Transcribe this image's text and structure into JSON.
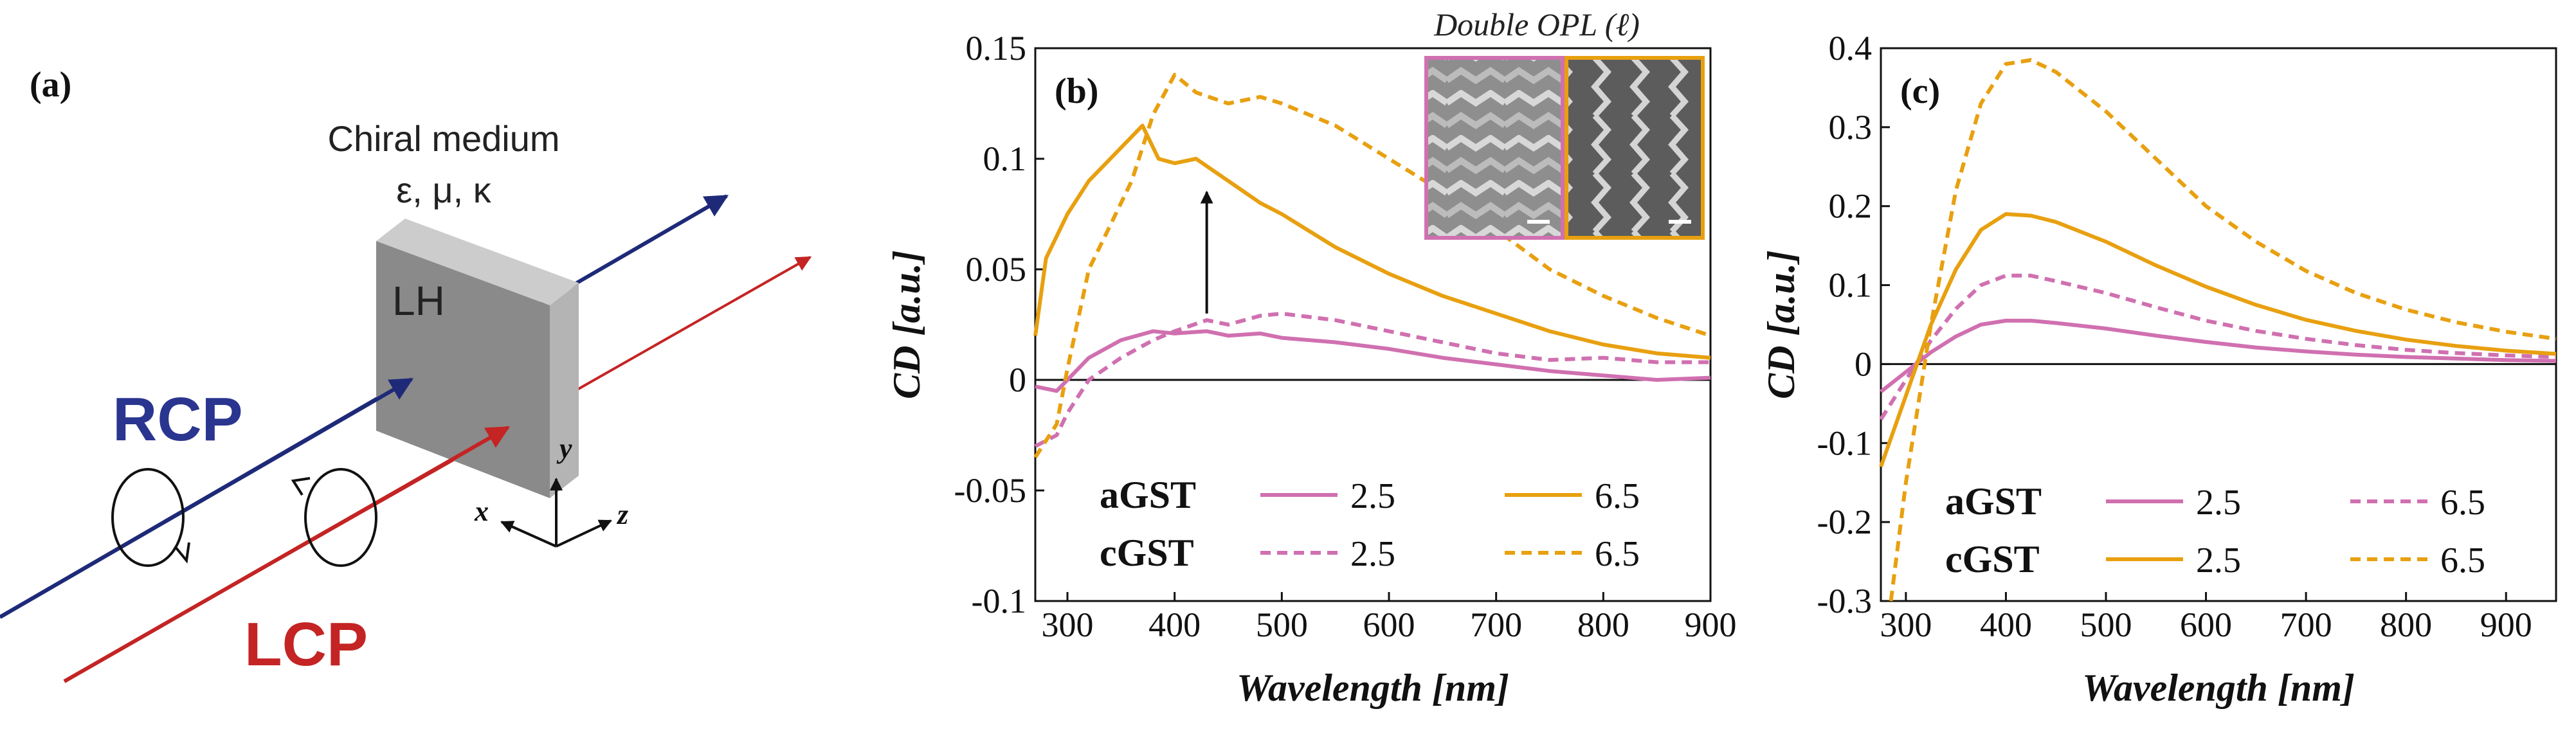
{
  "panels": {
    "a": {
      "label": "(a)",
      "medium_title": "Chiral medium",
      "medium_params": "ε, μ, κ",
      "rcp_label": "RCP",
      "lcp_label": "LCP",
      "medium_symbol": "LH",
      "axis_x": "x",
      "axis_y": "y",
      "axis_z": "z"
    },
    "b": {
      "label": "(b)",
      "inset_caption": "Double OPL (ℓ)"
    },
    "c": {
      "label": "(c)"
    }
  },
  "colors": {
    "pink": "#d070b0",
    "orange": "#e8a010",
    "rcp": "#1e2a78",
    "lcp": "#c42424",
    "slab_front": "#8a8a8a",
    "slab_side": "#b4b4b4",
    "slab_top": "#cccccc"
  },
  "chart_data": [
    {
      "id": "b",
      "type": "line",
      "title": "",
      "xlabel": "Wavelength [nm]",
      "ylabel": "CD [a.u.]",
      "xlim": [
        270,
        900
      ],
      "ylim": [
        -0.1,
        0.15
      ],
      "xticks": [
        300,
        400,
        500,
        600,
        700,
        800,
        900
      ],
      "xtick_labels": [
        "300",
        "400",
        "500",
        "600",
        "700",
        "800",
        "900"
      ],
      "yticks": [
        -0.1,
        -0.05,
        0,
        0.05,
        0.1,
        0.15
      ],
      "ytick_labels": [
        "-0.1",
        "-0.05",
        "0",
        "0.05",
        "0.1",
        "0.15"
      ],
      "zero_line": true,
      "legend": {
        "rows": [
          {
            "group": "aGST",
            "entries": [
              {
                "series": 0,
                "label": "2.5"
              },
              {
                "series": 2,
                "label": "6.5"
              }
            ]
          },
          {
            "group": "cGST",
            "entries": [
              {
                "series": 1,
                "label": "2.5"
              },
              {
                "series": 3,
                "label": "6.5"
              }
            ]
          }
        ]
      },
      "annotations": [
        {
          "type": "arrow",
          "x": 430,
          "from": 0.03,
          "to": 0.085
        }
      ],
      "series": [
        {
          "name": "aGST 2.5",
          "color": "pink",
          "dash": "solid",
          "x": [
            270,
            290,
            300,
            320,
            350,
            380,
            400,
            430,
            450,
            480,
            500,
            550,
            600,
            650,
            700,
            750,
            800,
            850,
            900
          ],
          "y": [
            -0.003,
            -0.005,
            0.0,
            0.01,
            0.018,
            0.022,
            0.021,
            0.022,
            0.02,
            0.021,
            0.019,
            0.017,
            0.014,
            0.01,
            0.007,
            0.004,
            0.002,
            0.0,
            0.001
          ]
        },
        {
          "name": "cGST 2.5",
          "color": "pink",
          "dash": "dashed",
          "x": [
            270,
            290,
            300,
            320,
            350,
            380,
            400,
            430,
            450,
            480,
            500,
            550,
            600,
            650,
            700,
            750,
            800,
            850,
            900
          ],
          "y": [
            -0.03,
            -0.025,
            -0.015,
            0.0,
            0.01,
            0.018,
            0.022,
            0.027,
            0.025,
            0.029,
            0.03,
            0.027,
            0.022,
            0.017,
            0.012,
            0.009,
            0.01,
            0.008,
            0.008
          ]
        },
        {
          "name": "aGST 6.5",
          "color": "orange",
          "dash": "solid",
          "x": [
            270,
            280,
            300,
            320,
            350,
            370,
            385,
            400,
            420,
            450,
            480,
            500,
            550,
            600,
            650,
            700,
            750,
            800,
            850,
            900
          ],
          "y": [
            0.02,
            0.055,
            0.075,
            0.09,
            0.105,
            0.115,
            0.1,
            0.098,
            0.1,
            0.09,
            0.08,
            0.075,
            0.06,
            0.048,
            0.038,
            0.03,
            0.022,
            0.016,
            0.012,
            0.01
          ]
        },
        {
          "name": "cGST 6.5",
          "color": "orange",
          "dash": "dashed",
          "x": [
            270,
            290,
            300,
            320,
            340,
            360,
            380,
            400,
            420,
            450,
            480,
            500,
            550,
            600,
            650,
            700,
            750,
            800,
            850,
            900
          ],
          "y": [
            -0.035,
            -0.02,
            0.005,
            0.05,
            0.07,
            0.09,
            0.12,
            0.138,
            0.13,
            0.125,
            0.128,
            0.125,
            0.115,
            0.1,
            0.085,
            0.068,
            0.05,
            0.038,
            0.028,
            0.02
          ]
        }
      ]
    },
    {
      "id": "c",
      "type": "line",
      "title": "",
      "xlabel": "Wavelength [nm]",
      "ylabel": "CD [a.u.]",
      "xlim": [
        275,
        950
      ],
      "ylim": [
        -0.3,
        0.4
      ],
      "xticks": [
        300,
        400,
        500,
        600,
        700,
        800,
        900
      ],
      "xtick_labels": [
        "300",
        "400",
        "500",
        "600",
        "700",
        "800",
        "900"
      ],
      "yticks": [
        -0.3,
        -0.2,
        -0.1,
        0,
        0.1,
        0.2,
        0.3,
        0.4
      ],
      "ytick_labels": [
        "-0.3",
        "-0.2",
        "-0.1",
        "0",
        "0.1",
        "0.2",
        "0.3",
        "0.4"
      ],
      "zero_line": true,
      "legend": {
        "rows": [
          {
            "group": "aGST",
            "entries": [
              {
                "series": 0,
                "label": "2.5"
              },
              {
                "series": 1,
                "label": "6.5"
              }
            ]
          },
          {
            "group": "cGST",
            "entries": [
              {
                "series": 2,
                "label": "2.5"
              },
              {
                "series": 3,
                "label": "6.5"
              }
            ]
          }
        ]
      },
      "annotations": [],
      "series": [
        {
          "name": "aGST 2.5",
          "color": "pink",
          "dash": "solid",
          "x": [
            275,
            300,
            325,
            350,
            375,
            400,
            425,
            450,
            500,
            550,
            600,
            650,
            700,
            750,
            800,
            850,
            900,
            950
          ],
          "y": [
            -0.035,
            -0.01,
            0.015,
            0.035,
            0.05,
            0.055,
            0.055,
            0.052,
            0.045,
            0.036,
            0.028,
            0.021,
            0.016,
            0.012,
            0.009,
            0.007,
            0.005,
            0.004
          ]
        },
        {
          "name": "aGST 6.5",
          "color": "pink",
          "dash": "dashed",
          "x": [
            275,
            300,
            325,
            350,
            375,
            400,
            425,
            450,
            500,
            550,
            600,
            650,
            700,
            750,
            800,
            850,
            900,
            950
          ],
          "y": [
            -0.07,
            -0.02,
            0.03,
            0.07,
            0.1,
            0.112,
            0.112,
            0.105,
            0.09,
            0.072,
            0.055,
            0.042,
            0.032,
            0.024,
            0.018,
            0.014,
            0.011,
            0.009
          ]
        },
        {
          "name": "cGST 2.5",
          "color": "orange",
          "dash": "solid",
          "x": [
            275,
            300,
            325,
            350,
            375,
            400,
            425,
            450,
            500,
            550,
            600,
            650,
            700,
            750,
            800,
            850,
            900,
            950
          ],
          "y": [
            -0.13,
            -0.04,
            0.05,
            0.12,
            0.17,
            0.19,
            0.188,
            0.18,
            0.155,
            0.125,
            0.098,
            0.075,
            0.056,
            0.042,
            0.031,
            0.023,
            0.017,
            0.013
          ]
        },
        {
          "name": "cGST 6.5",
          "color": "orange",
          "dash": "dashed",
          "x": [
            285,
            300,
            325,
            350,
            375,
            400,
            425,
            450,
            500,
            550,
            600,
            650,
            700,
            750,
            800,
            850,
            900,
            950
          ],
          "y": [
            -0.3,
            -0.15,
            0.05,
            0.22,
            0.33,
            0.38,
            0.385,
            0.37,
            0.32,
            0.26,
            0.2,
            0.155,
            0.118,
            0.09,
            0.069,
            0.053,
            0.041,
            0.032
          ]
        }
      ]
    }
  ]
}
